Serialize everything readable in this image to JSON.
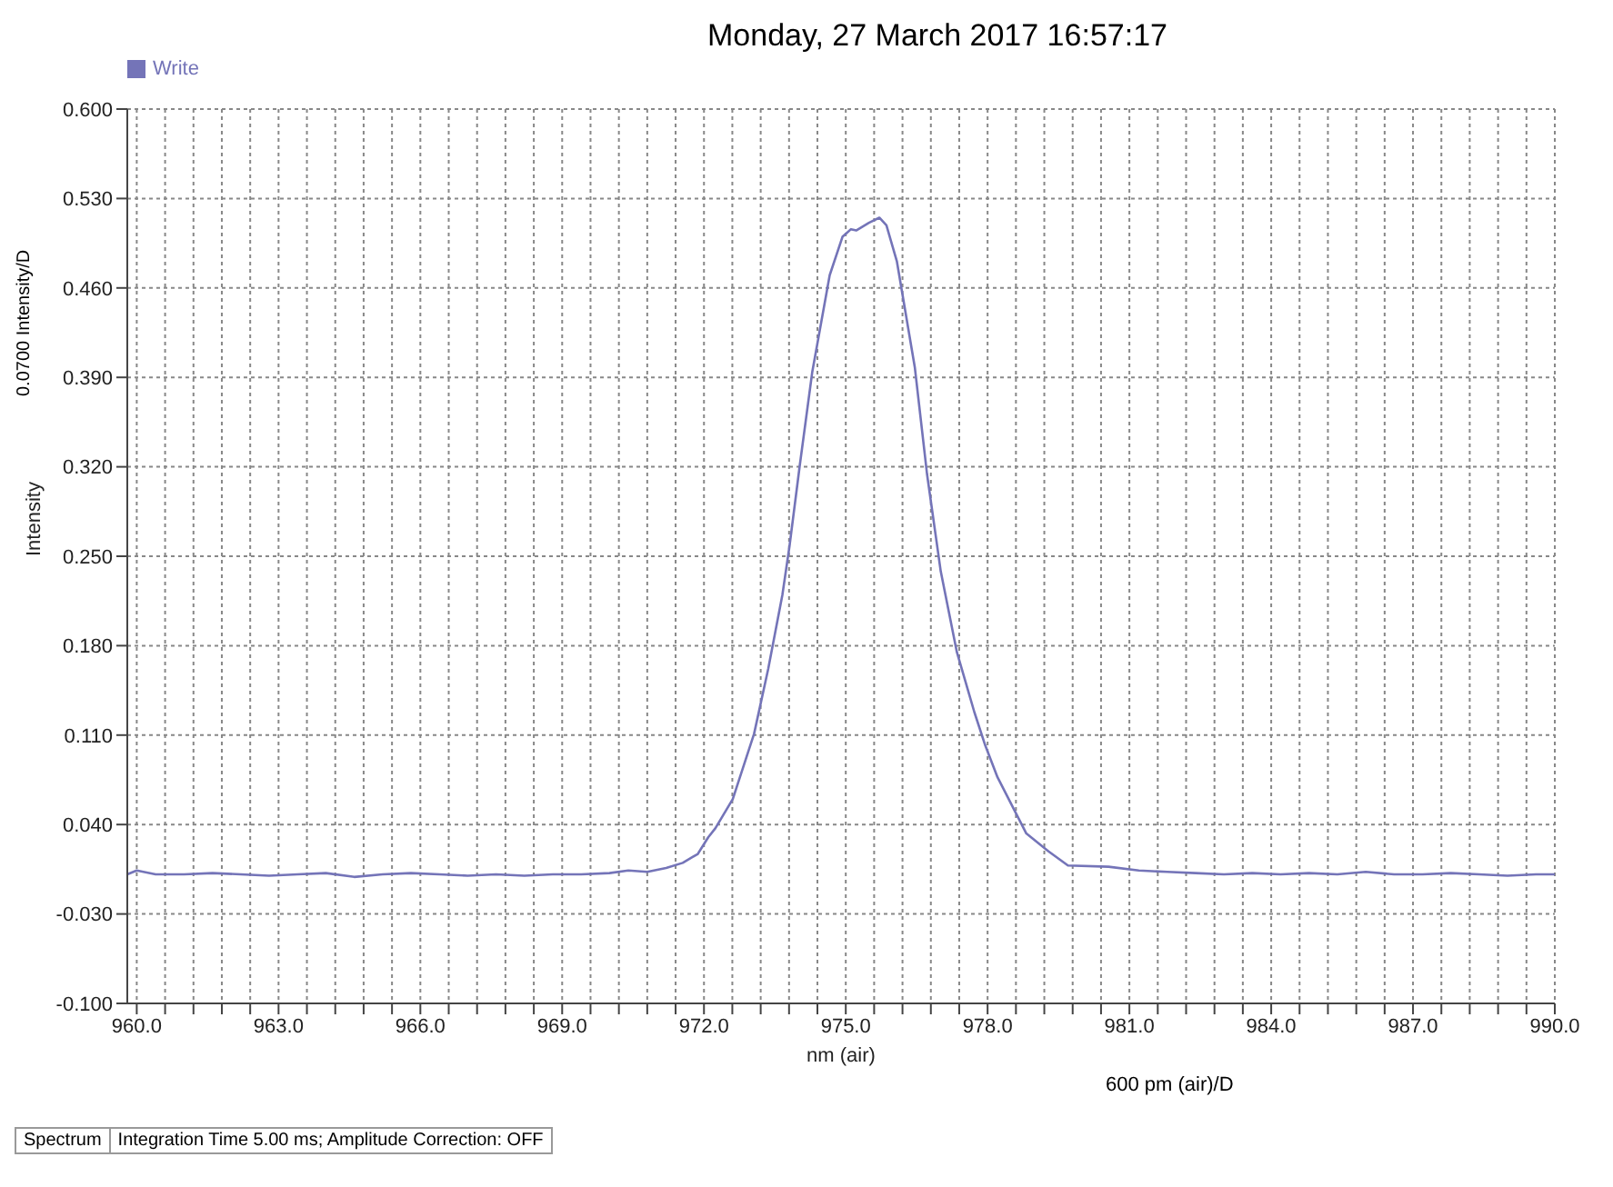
{
  "chart_data": {
    "type": "line",
    "title": "Monday, 27 March 2017 16:57:17",
    "xlabel": "nm (air)",
    "ylabel": "Intensity",
    "annotations": [
      "0.0700 Intensity/D",
      "600 pm (air)/D",
      "Spectrum",
      "Integration Time 5.00 ms; Amplitude Correction: OFF"
    ],
    "x": [
      959.8,
      960.0,
      960.4,
      961.0,
      961.6,
      962.2,
      962.8,
      963.4,
      964.0,
      964.6,
      965.2,
      965.8,
      966.4,
      967.0,
      967.6,
      968.2,
      968.8,
      969.4,
      970.0,
      970.4,
      970.8,
      971.2,
      971.55,
      971.87,
      972.09,
      972.24,
      972.61,
      973.06,
      973.36,
      973.66,
      973.81,
      974.03,
      974.29,
      974.66,
      974.93,
      975.11,
      975.22,
      975.49,
      975.71,
      975.86,
      976.08,
      976.46,
      976.72,
      977.01,
      977.35,
      977.72,
      977.95,
      978.21,
      978.82,
      979.29,
      979.7,
      980.56,
      981.2,
      981.8,
      982.4,
      983.0,
      983.6,
      984.2,
      984.8,
      985.4,
      986.0,
      986.6,
      987.2,
      987.8,
      988.4,
      989.0,
      989.6,
      990.0
    ],
    "series": [
      {
        "name": "Write",
        "color": "#7474b8",
        "values": [
          0.001,
          0.004,
          0.001,
          0.001,
          0.002,
          0.001,
          0.0,
          0.001,
          0.002,
          -0.001,
          0.001,
          0.002,
          0.001,
          0.0,
          0.001,
          0.0,
          0.001,
          0.001,
          0.002,
          0.004,
          0.003,
          0.006,
          0.01,
          0.017,
          0.03,
          0.037,
          0.06,
          0.111,
          0.162,
          0.22,
          0.258,
          0.322,
          0.394,
          0.47,
          0.5,
          0.506,
          0.505,
          0.511,
          0.515,
          0.509,
          0.481,
          0.398,
          0.314,
          0.238,
          0.175,
          0.128,
          0.102,
          0.077,
          0.033,
          0.019,
          0.008,
          0.007,
          0.004,
          0.003,
          0.002,
          0.001,
          0.002,
          0.001,
          0.002,
          0.001,
          0.003,
          0.001,
          0.001,
          0.002,
          0.001,
          0.0,
          0.001,
          0.001
        ]
      }
    ],
    "xlim": [
      959.8,
      990.0
    ],
    "xticks": [
      {
        "value": 960.0,
        "label": "960.0"
      },
      {
        "value": 960.6,
        "label": null
      },
      {
        "value": 961.2,
        "label": null
      },
      {
        "value": 961.8,
        "label": null
      },
      {
        "value": 962.4,
        "label": null
      },
      {
        "value": 963.0,
        "label": "963.0"
      },
      {
        "value": 963.6,
        "label": null
      },
      {
        "value": 964.2,
        "label": null
      },
      {
        "value": 964.8,
        "label": null
      },
      {
        "value": 965.4,
        "label": null
      },
      {
        "value": 966.0,
        "label": "966.0"
      },
      {
        "value": 966.6,
        "label": null
      },
      {
        "value": 967.2,
        "label": null
      },
      {
        "value": 967.8,
        "label": null
      },
      {
        "value": 968.4,
        "label": null
      },
      {
        "value": 969.0,
        "label": "969.0"
      },
      {
        "value": 969.6,
        "label": null
      },
      {
        "value": 970.2,
        "label": null
      },
      {
        "value": 970.8,
        "label": null
      },
      {
        "value": 971.4,
        "label": null
      },
      {
        "value": 972.0,
        "label": "972.0"
      },
      {
        "value": 972.6,
        "label": null
      },
      {
        "value": 973.2,
        "label": null
      },
      {
        "value": 973.8,
        "label": null
      },
      {
        "value": 974.4,
        "label": null
      },
      {
        "value": 975.0,
        "label": "975.0"
      },
      {
        "value": 975.6,
        "label": null
      },
      {
        "value": 976.2,
        "label": null
      },
      {
        "value": 976.8,
        "label": null
      },
      {
        "value": 977.4,
        "label": null
      },
      {
        "value": 978.0,
        "label": "978.0"
      },
      {
        "value": 978.6,
        "label": null
      },
      {
        "value": 979.2,
        "label": null
      },
      {
        "value": 979.8,
        "label": null
      },
      {
        "value": 980.4,
        "label": null
      },
      {
        "value": 981.0,
        "label": "981.0"
      },
      {
        "value": 981.6,
        "label": null
      },
      {
        "value": 982.2,
        "label": null
      },
      {
        "value": 982.8,
        "label": null
      },
      {
        "value": 983.4,
        "label": null
      },
      {
        "value": 984.0,
        "label": "984.0"
      },
      {
        "value": 984.6,
        "label": null
      },
      {
        "value": 985.2,
        "label": null
      },
      {
        "value": 985.8,
        "label": null
      },
      {
        "value": 986.4,
        "label": null
      },
      {
        "value": 987.0,
        "label": "987.0"
      },
      {
        "value": 987.6,
        "label": null
      },
      {
        "value": 988.2,
        "label": null
      },
      {
        "value": 988.8,
        "label": null
      },
      {
        "value": 989.4,
        "label": null
      },
      {
        "value": 990.0,
        "label": "990.0"
      }
    ],
    "ylim": [
      -0.1,
      0.6
    ],
    "yticks": [
      {
        "value": -0.1,
        "label": "-0.100"
      },
      {
        "value": -0.03,
        "label": "-0.030"
      },
      {
        "value": 0.04,
        "label": "0.040"
      },
      {
        "value": 0.11,
        "label": "0.110"
      },
      {
        "value": 0.18,
        "label": "0.180"
      },
      {
        "value": 0.25,
        "label": "0.250"
      },
      {
        "value": 0.32,
        "label": "0.320"
      },
      {
        "value": 0.39,
        "label": "0.390"
      },
      {
        "value": 0.46,
        "label": "0.460"
      },
      {
        "value": 0.53,
        "label": "0.530"
      },
      {
        "value": 0.6,
        "label": "0.600"
      }
    ],
    "grid": true,
    "legend": "top left",
    "marker": "none",
    "line_style": "solid"
  }
}
